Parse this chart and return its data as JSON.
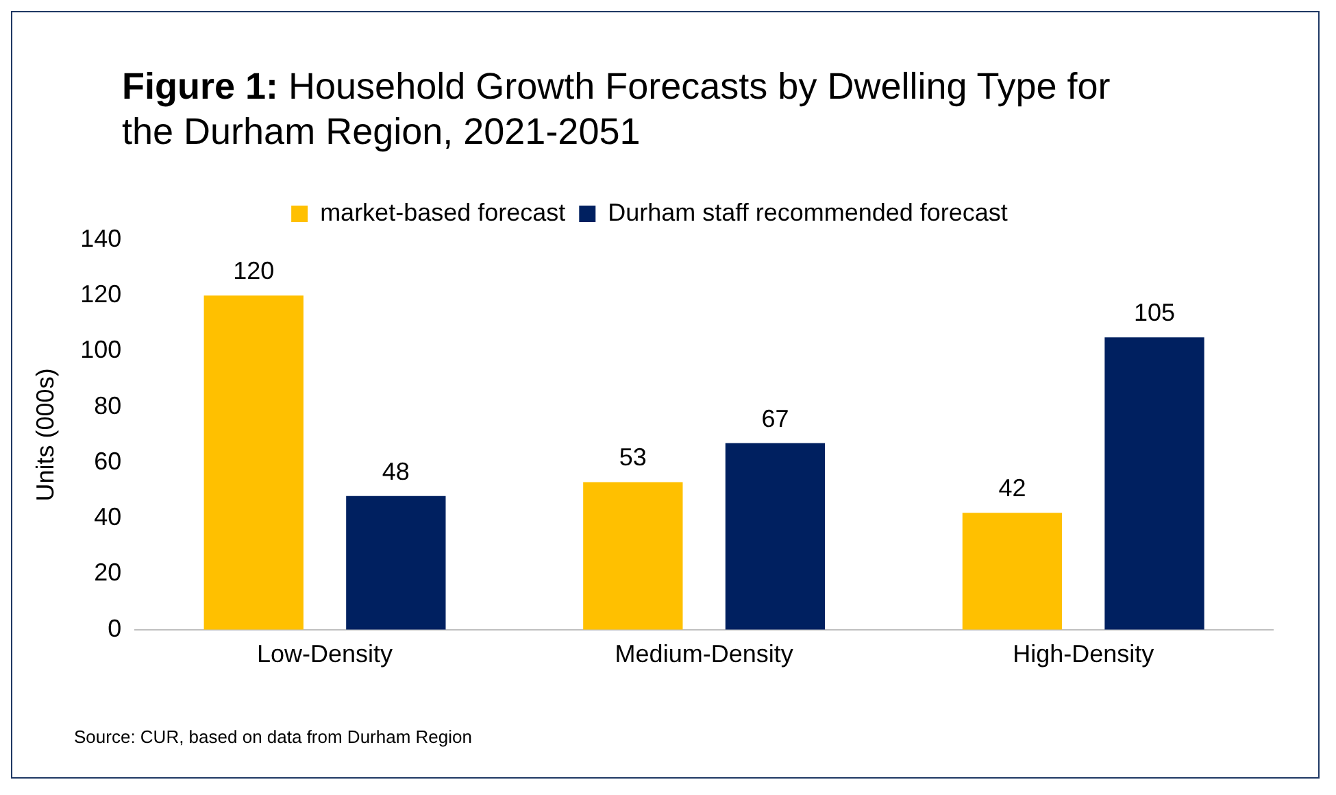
{
  "chart_data": {
    "type": "bar",
    "title": "Figure 1: Household Growth Forecasts by Dwelling Type for the Durham Region, 2021-2051",
    "ylabel": "Units (000s)",
    "categories": [
      "Low-Density",
      "Medium-Density",
      "High-Density"
    ],
    "series": [
      {
        "name": "market-based forecast",
        "color": "#ffc000",
        "values": [
          120,
          53,
          42
        ]
      },
      {
        "name": "Durham staff recommended forecast",
        "color": "#002060",
        "values": [
          48,
          67,
          105
        ]
      }
    ],
    "ylim": [
      0,
      140
    ],
    "yticks": [
      0,
      20,
      40,
      60,
      80,
      100,
      120,
      140
    ],
    "grid": false,
    "legend": "top",
    "data_labels": true,
    "annotations": [
      "Source: CUR, based on data from Durham Region"
    ]
  }
}
